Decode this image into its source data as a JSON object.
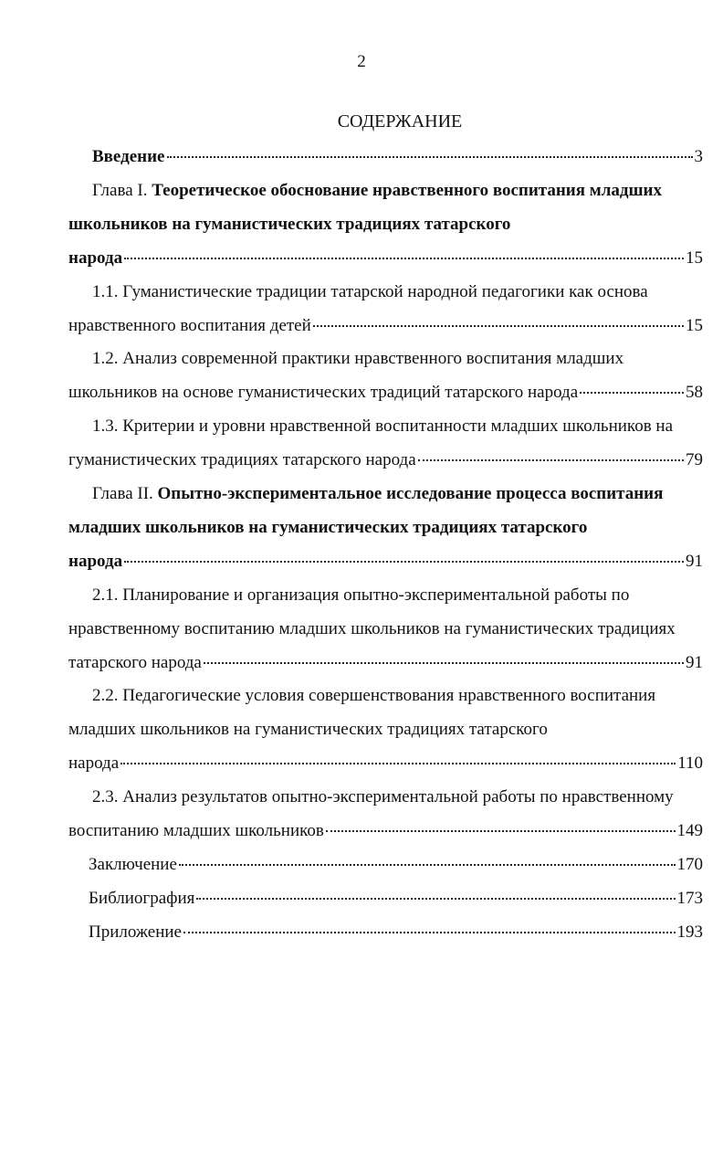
{
  "header": {
    "page_number": "2",
    "title": "СОДЕРЖАНИЕ"
  },
  "entries": [
    {
      "lines": [
        "Введение"
      ],
      "page": 3,
      "bold": true
    },
    {
      "prefix": "Глава I.",
      "lines": [
        "Теоретическое обоснование нравственного воспитания младших",
        "школьников на гуманистических традициях татарского",
        "народа"
      ],
      "page": 15,
      "bold": true
    },
    {
      "lines": [
        "1.1. Гуманистические традиции татарской народной педагогики как основа",
        "нравственного воспитания детей"
      ],
      "page": 15,
      "bold": false
    },
    {
      "lines": [
        "1.2. Анализ современной практики нравственного воспитания младших",
        "школьников на основе гуманистических традиций татарского народа"
      ],
      "page": 58,
      "bold": false
    },
    {
      "lines": [
        "1.3. Критерии и уровни нравственной воспитанности младших школьников на",
        "гуманистических традициях татарского народа"
      ],
      "page": 79,
      "bold": false
    },
    {
      "prefix": "Глава II.",
      "lines": [
        "Опытно-экспериментальное исследование процесса воспитания",
        "младших школьников на гуманистических традициях татарского",
        "народа"
      ],
      "page": 91,
      "bold": true
    },
    {
      "lines": [
        "2.1. Планирование и организация опытно-экспериментальной работы по",
        "нравственному воспитанию младших школьников на гуманистических традициях",
        "татарского народа"
      ],
      "page": 91,
      "bold": false
    },
    {
      "lines": [
        "2.2. Педагогические условия совершенствования нравственного воспитания",
        "младших школьников на гуманистических традициях татарского",
        "народа"
      ],
      "page": 110,
      "bold": false
    },
    {
      "lines": [
        "2.3. Анализ результатов опытно-экспериментальной работы по нравственному",
        "воспитанию младших школьников"
      ],
      "page": 149,
      "bold": false
    },
    {
      "lines": [
        "Заключение"
      ],
      "page": 170,
      "bold": false
    },
    {
      "lines": [
        "Библиография"
      ],
      "page": 173,
      "bold": false
    },
    {
      "lines": [
        "Приложение"
      ],
      "page": 193,
      "bold": false
    }
  ]
}
